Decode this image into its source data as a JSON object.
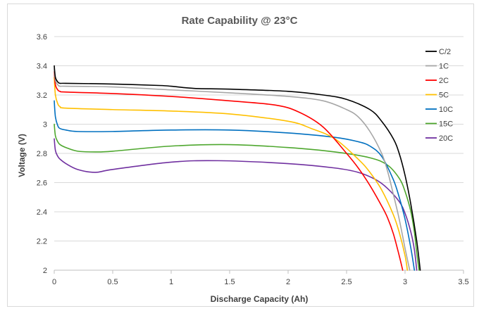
{
  "chart_data": {
    "type": "line",
    "title": "Rate Capability @ 23°C",
    "xlabel": "Discharge Capacity (Ah)",
    "ylabel": "Voltage (V)",
    "xlim": [
      0,
      3.5
    ],
    "ylim": [
      2,
      3.6
    ],
    "xticks": [
      "0",
      "0.5",
      "1",
      "1.5",
      "2",
      "2.5",
      "3",
      "3.5"
    ],
    "yticks": [
      "2",
      "2.2",
      "2.4",
      "2.6",
      "2.8",
      "3",
      "3.2",
      "3.4",
      "3.6"
    ],
    "grid": "horizontal",
    "legend_position": "right",
    "series": [
      {
        "name": "C/2",
        "color": "#000000",
        "x": [
          0,
          0.01,
          0.03,
          0.05,
          0.1,
          0.5,
          0.9,
          1.0,
          1.2,
          1.5,
          2.0,
          2.3,
          2.5,
          2.7,
          2.8,
          2.9,
          2.95,
          3.0,
          3.05,
          3.1,
          3.13
        ],
        "y": [
          3.4,
          3.32,
          3.29,
          3.28,
          3.28,
          3.275,
          3.265,
          3.26,
          3.245,
          3.24,
          3.225,
          3.2,
          3.17,
          3.1,
          3.02,
          2.9,
          2.8,
          2.65,
          2.45,
          2.2,
          2.0
        ]
      },
      {
        "name": "1C",
        "color": "#a6a6a6",
        "x": [
          0,
          0.01,
          0.03,
          0.05,
          0.1,
          0.5,
          1.0,
          1.5,
          2.0,
          2.3,
          2.5,
          2.6,
          2.7,
          2.8,
          2.85,
          2.9,
          2.95,
          3.0,
          3.04
        ],
        "y": [
          3.38,
          3.3,
          3.27,
          3.26,
          3.26,
          3.255,
          3.235,
          3.215,
          3.19,
          3.16,
          3.1,
          3.05,
          2.95,
          2.8,
          2.68,
          2.52,
          2.35,
          2.15,
          2.0
        ]
      },
      {
        "name": "2C",
        "color": "#ff0000",
        "x": [
          0,
          0.01,
          0.03,
          0.05,
          0.1,
          0.5,
          1.0,
          1.5,
          1.9,
          2.1,
          2.3,
          2.5,
          2.6,
          2.7,
          2.8,
          2.85,
          2.9,
          2.95,
          2.98
        ],
        "y": [
          3.36,
          3.27,
          3.235,
          3.225,
          3.22,
          3.21,
          3.19,
          3.16,
          3.13,
          3.08,
          2.98,
          2.8,
          2.7,
          2.58,
          2.44,
          2.36,
          2.25,
          2.1,
          2.0
        ]
      },
      {
        "name": "5C",
        "color": "#ffc000",
        "x": [
          0,
          0.01,
          0.03,
          0.05,
          0.1,
          0.5,
          1.0,
          1.5,
          2.0,
          2.2,
          2.4,
          2.6,
          2.7,
          2.8,
          2.9,
          2.95,
          3.0,
          3.02
        ],
        "y": [
          3.32,
          3.2,
          3.14,
          3.12,
          3.11,
          3.1,
          3.09,
          3.07,
          3.02,
          2.97,
          2.9,
          2.76,
          2.67,
          2.55,
          2.38,
          2.26,
          2.1,
          2.0
        ]
      },
      {
        "name": "10C",
        "color": "#0070c0",
        "x": [
          0,
          0.01,
          0.03,
          0.05,
          0.1,
          0.2,
          0.5,
          1.0,
          1.5,
          2.0,
          2.4,
          2.6,
          2.7,
          2.8,
          2.9,
          2.95,
          3.0,
          3.05,
          3.08
        ],
        "y": [
          3.16,
          3.05,
          2.99,
          2.97,
          2.96,
          2.95,
          2.95,
          2.96,
          2.96,
          2.94,
          2.91,
          2.88,
          2.85,
          2.78,
          2.62,
          2.5,
          2.35,
          2.15,
          2.0
        ]
      },
      {
        "name": "15C",
        "color": "#4ea72e",
        "x": [
          0,
          0.01,
          0.03,
          0.05,
          0.1,
          0.2,
          0.35,
          0.5,
          1.0,
          1.5,
          2.0,
          2.4,
          2.7,
          2.85,
          2.95,
          3.0,
          3.05,
          3.08,
          3.1,
          3.12
        ],
        "y": [
          3.0,
          2.92,
          2.88,
          2.86,
          2.84,
          2.815,
          2.81,
          2.815,
          2.85,
          2.86,
          2.84,
          2.81,
          2.77,
          2.72,
          2.63,
          2.54,
          2.4,
          2.26,
          2.12,
          2.0
        ]
      },
      {
        "name": "20C",
        "color": "#7030a0",
        "x": [
          0,
          0.01,
          0.03,
          0.05,
          0.1,
          0.2,
          0.35,
          0.5,
          1.0,
          1.4,
          2.0,
          2.4,
          2.6,
          2.75,
          2.85,
          2.95,
          3.0,
          3.05,
          3.08,
          3.1
        ],
        "y": [
          2.9,
          2.82,
          2.78,
          2.76,
          2.73,
          2.69,
          2.67,
          2.69,
          2.74,
          2.75,
          2.73,
          2.7,
          2.67,
          2.62,
          2.56,
          2.47,
          2.39,
          2.26,
          2.14,
          2.0
        ]
      }
    ]
  }
}
